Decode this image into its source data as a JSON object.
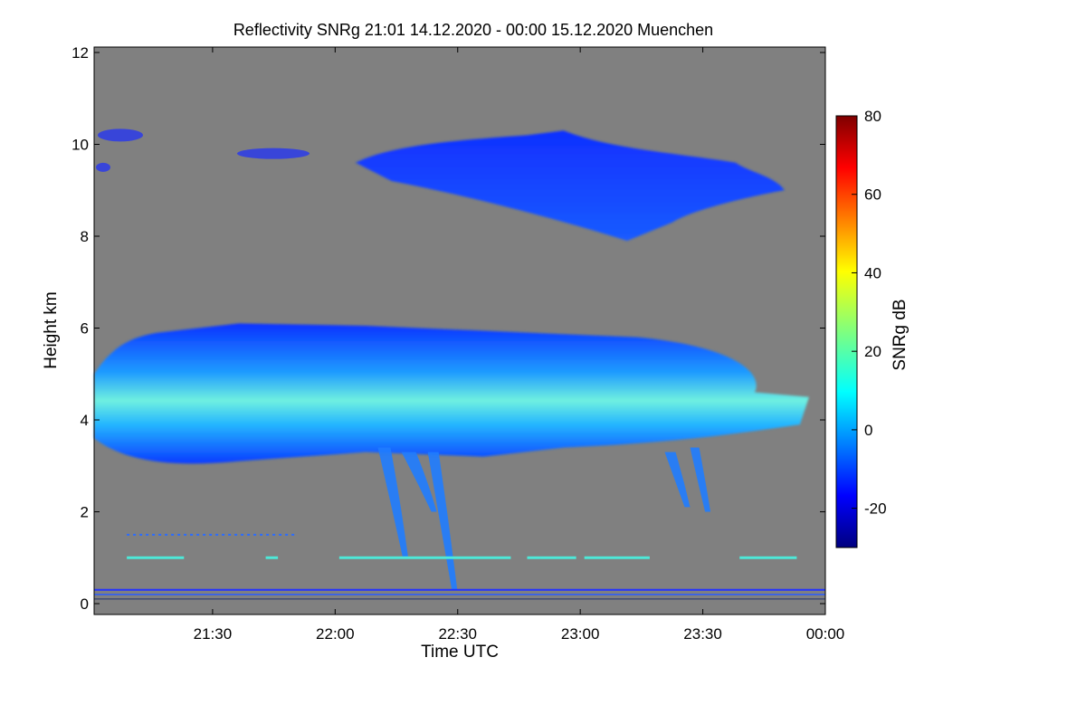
{
  "chart_data": {
    "type": "heatmap",
    "title": "Reflectivity SNRg   21:01 14.12.2020 - 00:00 15.12.2020 Muenchen",
    "xlabel": "Time UTC",
    "ylabel": "Height km",
    "xlim": [
      "21:01",
      "00:00"
    ],
    "ylim": [
      0,
      12
    ],
    "x_ticks": [
      "21:30",
      "22:00",
      "22:30",
      "23:00",
      "23:30",
      "00:00"
    ],
    "y_ticks": [
      0,
      2,
      4,
      6,
      8,
      10,
      12
    ],
    "background_color": "#808080",
    "colorbar": {
      "label": "SNRg dB",
      "range": [
        -30,
        80
      ],
      "ticks": [
        -20,
        0,
        20,
        40,
        60,
        80
      ],
      "colormap": "jet"
    },
    "features": [
      {
        "layer": "upper cloud",
        "time_start": "22:05",
        "time_end": "23:50",
        "height_bottom_km": 7.9,
        "height_top_km": 10.3,
        "snr_db": -18
      },
      {
        "layer": "main precipitation layer",
        "time_start": "21:01",
        "time_end": "23:56",
        "height_bottom_km": 3.0,
        "height_top_km": 6.1,
        "snr_db_core": 10
      },
      {
        "layer": "fall streaks",
        "time_start": "22:15",
        "time_end": "22:32",
        "height_bottom_km": 0.2,
        "height_top_km": 3.5,
        "snr_db": -10
      },
      {
        "layer": "near-surface band",
        "time_start": "21:01",
        "time_end": "00:00",
        "height_km": 1.0,
        "snr_db": 12
      }
    ]
  }
}
